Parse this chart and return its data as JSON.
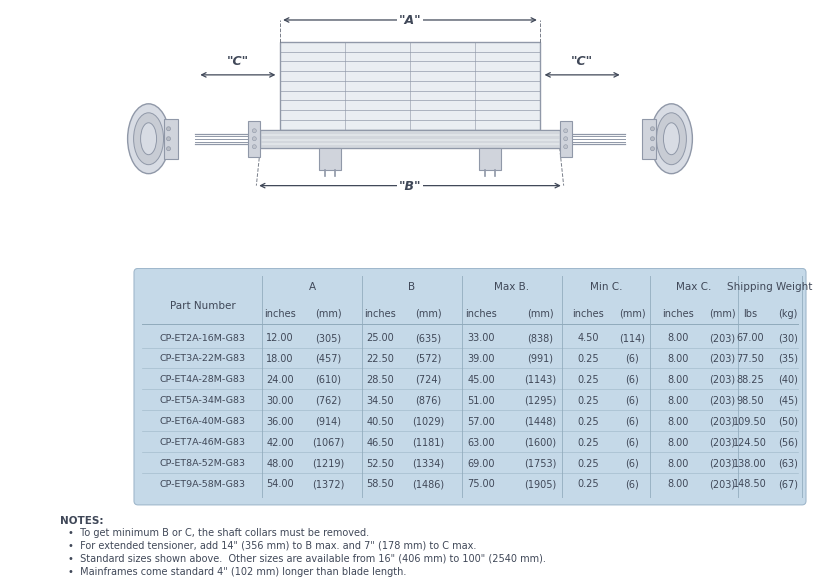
{
  "table_data": [
    [
      "CP-ET2A-16M-G83",
      "12.00",
      "(305)",
      "25.00",
      "(635)",
      "33.00",
      "(838)",
      "4.50",
      "(114)",
      "8.00",
      "(203)",
      "67.00",
      "(30)"
    ],
    [
      "CP-ET3A-22M-G83",
      "18.00",
      "(457)",
      "22.50",
      "(572)",
      "39.00",
      "(991)",
      "0.25",
      "(6)",
      "8.00",
      "(203)",
      "77.50",
      "(35)"
    ],
    [
      "CP-ET4A-28M-G83",
      "24.00",
      "(610)",
      "28.50",
      "(724)",
      "45.00",
      "(1143)",
      "0.25",
      "(6)",
      "8.00",
      "(203)",
      "88.25",
      "(40)"
    ],
    [
      "CP-ET5A-34M-G83",
      "30.00",
      "(762)",
      "34.50",
      "(876)",
      "51.00",
      "(1295)",
      "0.25",
      "(6)",
      "8.00",
      "(203)",
      "98.50",
      "(45)"
    ],
    [
      "CP-ET6A-40M-G83",
      "36.00",
      "(914)",
      "40.50",
      "(1029)",
      "57.00",
      "(1448)",
      "0.25",
      "(6)",
      "8.00",
      "(203)",
      "109.50",
      "(50)"
    ],
    [
      "CP-ET7A-46M-G83",
      "42.00",
      "(1067)",
      "46.50",
      "(1181)",
      "63.00",
      "(1600)",
      "0.25",
      "(6)",
      "8.00",
      "(203)",
      "124.50",
      "(56)"
    ],
    [
      "CP-ET8A-52M-G83",
      "48.00",
      "(1219)",
      "52.50",
      "(1334)",
      "69.00",
      "(1753)",
      "0.25",
      "(6)",
      "8.00",
      "(203)",
      "138.00",
      "(63)"
    ],
    [
      "CP-ET9A-58M-G83",
      "54.00",
      "(1372)",
      "58.50",
      "(1486)",
      "75.00",
      "(1905)",
      "0.25",
      "(6)",
      "8.00",
      "(203)",
      "148.50",
      "(67)"
    ]
  ],
  "group_labels": [
    "A",
    "B",
    "Max B.",
    "Min C.",
    "Max C.",
    "Shipping Weight"
  ],
  "subheader_labels": [
    "inches",
    "(mm)",
    "inches",
    "(mm)",
    "inches",
    "(mm)",
    "inches",
    "(mm)",
    "inches",
    "(mm)",
    "lbs",
    "(kg)"
  ],
  "notes_title": "NOTES:",
  "notes": [
    "To get minimum B or C, the shaft collars must be removed.",
    "For extended tensioner, add 14\" (356 mm) to B max. and 7\" (178 mm) to C max.",
    "Standard sizes shown above.  Other sizes are available from 16\" (406 mm) to 100\" (2540 mm).",
    "Mainframes come standard 4\" (102 mm) longer than blade length."
  ],
  "table_bg": "#c5d9e8",
  "fig_bg": "#ffffff",
  "text_color": "#404858",
  "lc": "#7090a0",
  "draw_lc": "#9098a8"
}
